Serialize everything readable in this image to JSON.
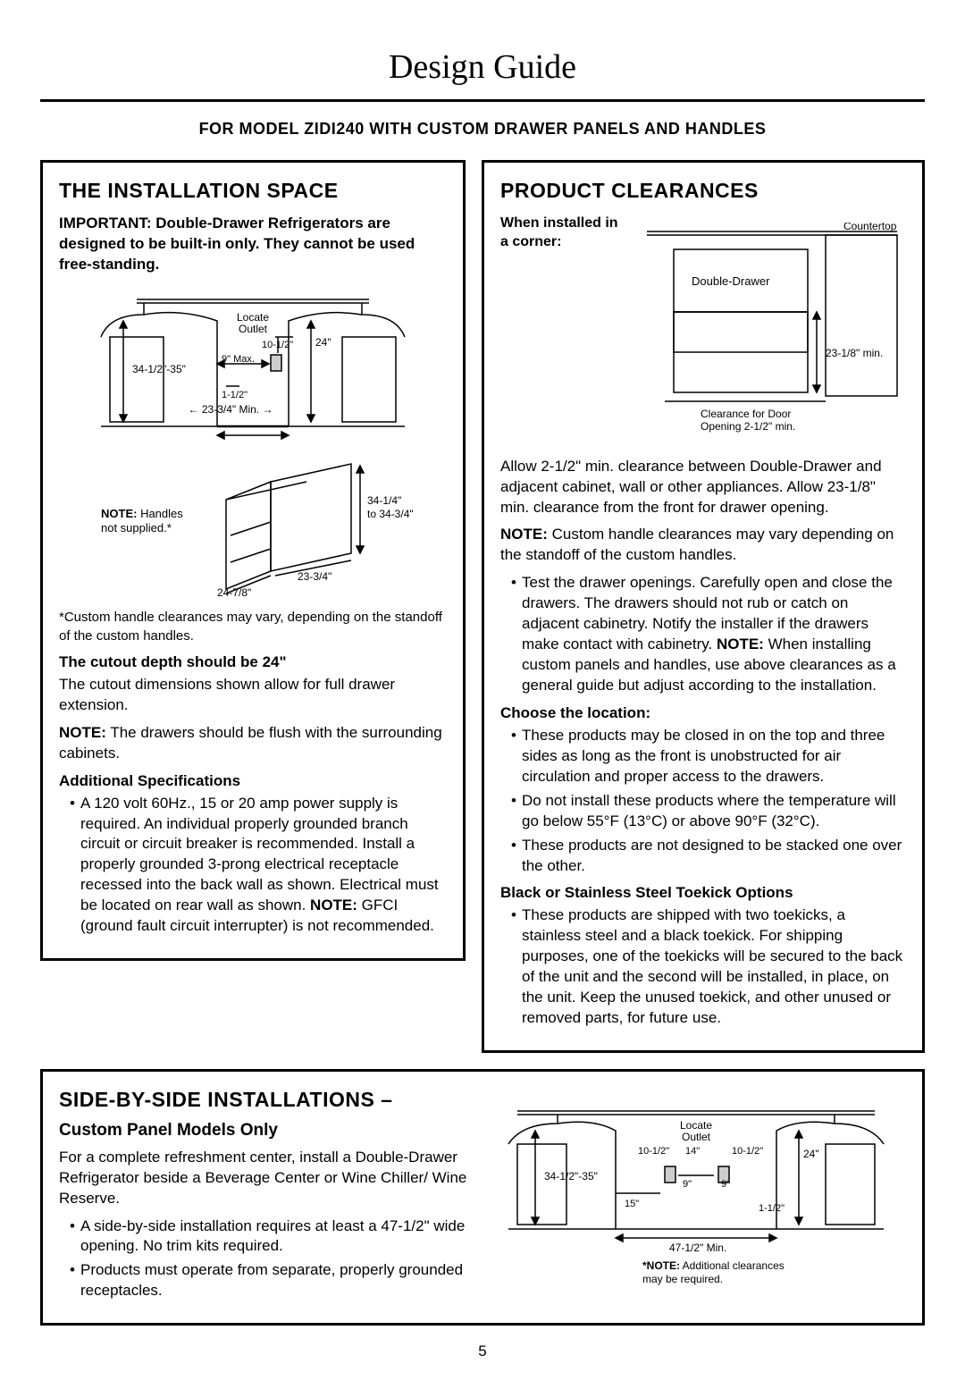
{
  "page": {
    "title": "Design Guide",
    "subtitle": "FOR MODEL ZIDI240 WITH CUSTOM DRAWER PANELS AND HANDLES",
    "page_number": "5"
  },
  "install_space": {
    "heading": "THE INSTALLATION SPACE",
    "important": "IMPORTANT: Double-Drawer Refrigerators are designed to be built-in only. They cannot be used free-standing.",
    "diagram1": {
      "locate_outlet": "Locate\nOutlet",
      "dim_10_5": "10-1/2\"",
      "dim_24": "24\"",
      "dim_height": "34-1/2\"-35\"",
      "dim_9max": "9\" Max.",
      "dim_1_5": "1-1/2\"",
      "dim_min": "23-3/4\" Min."
    },
    "diagram2": {
      "note_handles": "NOTE: Handles not supplied.*",
      "dim_width": "24-7/8\"",
      "dim_depth": "23-3/4\"",
      "dim_h_range": "34-1/4\"\nto 34-3/4\""
    },
    "footnote": "*Custom handle clearances may vary, depending on the standoff of the custom handles.",
    "cutout_head": "The cutout depth should be 24\"",
    "cutout_body": "The cutout dimensions shown allow for full drawer extension.",
    "cutout_note": "NOTE: The drawers should be flush with the surrounding cabinets.",
    "addl_head": "Additional Specifications",
    "addl_bullet": "A 120 volt 60Hz., 15 or 20 amp power supply is required. An individual properly grounded branch circuit or circuit breaker is recommended. Install a properly grounded 3-prong electrical receptacle recessed into the back wall as shown. Electrical must be located on rear wall as shown. NOTE: GFCI (ground fault circuit interrupter) is not recommended."
  },
  "clearances": {
    "heading": "PRODUCT CLEARANCES",
    "corner_label": "When installed in a corner:",
    "diagram": {
      "countertop": "Countertop",
      "double_drawer": "Double-Drawer",
      "dim_23": "23-1/8\" min.",
      "door_open": "Clearance for Door\nOpening 2-1/2\" min."
    },
    "p1": "Allow 2-1/2\" min. clearance between Double-Drawer and adjacent cabinet, wall or other appliances. Allow 23-1/8\" min. clearance from the front for drawer opening.",
    "p2_note": "NOTE: Custom handle clearances may vary depending on the standoff of the custom handles.",
    "test_bullet": "Test the drawer openings. Carefully open and close the drawers. The drawers should not rub or catch on adjacent cabinetry. Notify the installer if the drawers make contact with cabinetry. NOTE: When installing custom panels and handles, use above clearances as a general guide but adjust according to the installation.",
    "choose_head": "Choose the location:",
    "choose_b1": "These products may be closed in on the top and three sides as long as the front is unobstructed for air circulation and proper access to the drawers.",
    "choose_b2": "Do not install these products where the temperature will go below 55°F (13°C) or above 90°F (32°C).",
    "choose_b3": "These products are not designed to be stacked one over the other.",
    "toekick_head": "Black or Stainless Steel Toekick Options",
    "toekick_b1": "These products are shipped with two toekicks, a stainless steel and a black toekick. For shipping purposes, one of the toekicks will be secured to the back of the unit and the second will be installed, in place, on the unit. Keep the unused toekick, and other unused or removed parts, for future use."
  },
  "side_by_side": {
    "heading": "SIDE-BY-SIDE INSTALLATIONS –",
    "subhead": "Custom Panel Models Only",
    "intro": "For a complete refreshment center, install a Double-Drawer Refrigerator beside a Beverage Center or Wine Chiller/ Wine Reserve.",
    "b1": "A side-by-side installation requires at least a 47-1/2\" wide opening. No trim kits required.",
    "b2": "Products must operate from separate, properly grounded receptacles.",
    "diagram": {
      "locate_outlet": "Locate\nOutlet",
      "dim_10_5a": "10-1/2\"",
      "dim_14": "14\"",
      "dim_10_5b": "10-1/2\"",
      "dim_24": "24\"",
      "dim_height": "34-1/2\"-35\"",
      "dim_15": "15\"",
      "dim_9a": "9\"",
      "dim_9b": "9\"",
      "dim_1_5": "1-1/2\"",
      "dim_min": "47-1/2\" Min.",
      "note": "*NOTE: Additional clearances may be required."
    }
  }
}
